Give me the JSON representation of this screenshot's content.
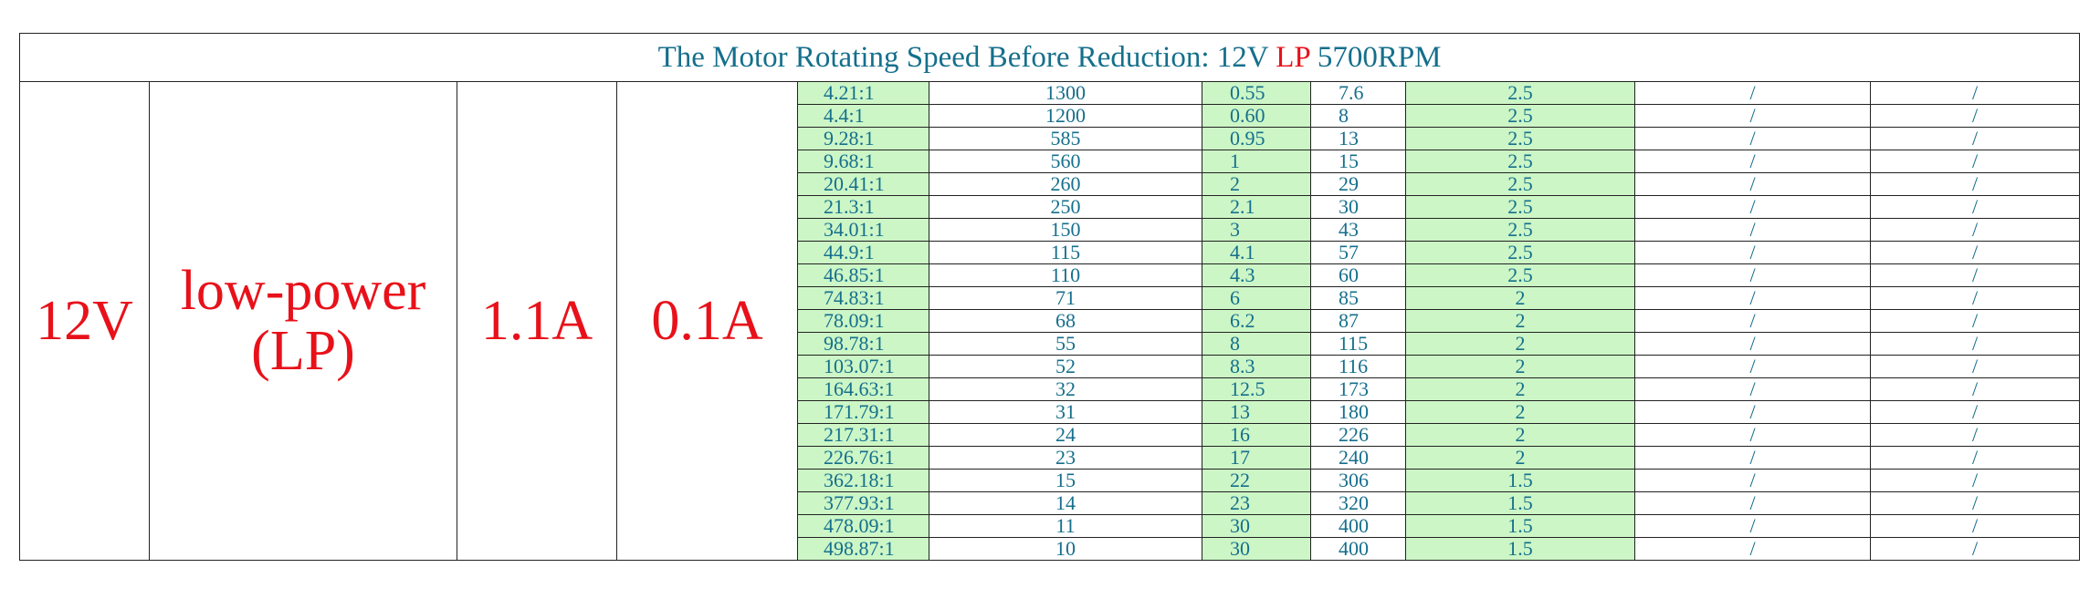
{
  "title": {
    "prefix": "The Motor Rotating Speed Before Reduction: 12V",
    "highlight": "LP",
    "suffix": "5700RPM"
  },
  "voltage": "12V",
  "type": "low-power (LP)",
  "current_1": "1.1A",
  "current_2": "0.1A",
  "rows": [
    [
      "4.21:1",
      "1300",
      "0.55",
      "7.6",
      "2.5",
      "/",
      "/"
    ],
    [
      "4.4:1",
      "1200",
      "0.60",
      "8",
      "2.5",
      "/",
      "/"
    ],
    [
      "9.28:1",
      "585",
      "0.95",
      "13",
      "2.5",
      "/",
      "/"
    ],
    [
      "9.68:1",
      "560",
      "1",
      "15",
      "2.5",
      "/",
      "/"
    ],
    [
      "20.41:1",
      "260",
      "2",
      "29",
      "2.5",
      "/",
      "/"
    ],
    [
      "21.3:1",
      "250",
      "2.1",
      "30",
      "2.5",
      "/",
      "/"
    ],
    [
      "34.01:1",
      "150",
      "3",
      "43",
      "2.5",
      "/",
      "/"
    ],
    [
      "44.9:1",
      "115",
      "4.1",
      "57",
      "2.5",
      "/",
      "/"
    ],
    [
      "46.85:1",
      "110",
      "4.3",
      "60",
      "2.5",
      "/",
      "/"
    ],
    [
      "74.83:1",
      "71",
      "6",
      "85",
      "2",
      "/",
      "/"
    ],
    [
      "78.09:1",
      "68",
      "6.2",
      "87",
      "2",
      "/",
      "/"
    ],
    [
      "98.78:1",
      "55",
      "8",
      "115",
      "2",
      "/",
      "/"
    ],
    [
      "103.07:1",
      "52",
      "8.3",
      "116",
      "2",
      "/",
      "/"
    ],
    [
      "164.63:1",
      "32",
      "12.5",
      "173",
      "2",
      "/",
      "/"
    ],
    [
      "171.79:1",
      "31",
      "13",
      "180",
      "2",
      "/",
      "/"
    ],
    [
      "217.31:1",
      "24",
      "16",
      "226",
      "2",
      "/",
      "/"
    ],
    [
      "226.76:1",
      "23",
      "17",
      "240",
      "2",
      "/",
      "/"
    ],
    [
      "362.18:1",
      "15",
      "22",
      "306",
      "1.5",
      "/",
      "/"
    ],
    [
      "377.93:1",
      "14",
      "23",
      "320",
      "1.5",
      "/",
      "/"
    ],
    [
      "478.09:1",
      "11",
      "30",
      "400",
      "1.5",
      "/",
      "/"
    ],
    [
      "498.87:1",
      "10",
      "30",
      "400",
      "1.5",
      "/",
      "/"
    ]
  ]
}
